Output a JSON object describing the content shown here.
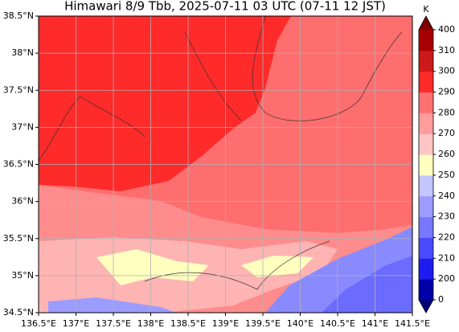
{
  "map": {
    "title": "Himawari 8/9 Tbb, 2025-07-11 03 UTC (07-11 12 JST)",
    "xlim": [
      136.5,
      141.5
    ],
    "ylim": [
      34.5,
      38.5
    ],
    "xticks": [
      {
        "value": 136.5,
        "label": "136.5°E"
      },
      {
        "value": 137,
        "label": "137°E"
      },
      {
        "value": 137.5,
        "label": "137.5°E"
      },
      {
        "value": 138,
        "label": "138°E"
      },
      {
        "value": 138.5,
        "label": "138.5°E"
      },
      {
        "value": 139,
        "label": "139°E"
      },
      {
        "value": 139.5,
        "label": "139.5°E"
      },
      {
        "value": 140,
        "label": "140°E"
      },
      {
        "value": 140.5,
        "label": "140.5°E"
      },
      {
        "value": 141,
        "label": "141°E"
      },
      {
        "value": 141.5,
        "label": "141.5°E"
      }
    ],
    "yticks": [
      {
        "value": 34.5,
        "label": "34.5°N"
      },
      {
        "value": 35,
        "label": "35°N"
      },
      {
        "value": 35.5,
        "label": "35.5°N"
      },
      {
        "value": 36,
        "label": "36°N"
      },
      {
        "value": 36.5,
        "label": "36.5°N"
      },
      {
        "value": 37,
        "label": "37°N"
      },
      {
        "value": 37.5,
        "label": "37.5°N"
      },
      {
        "value": 38,
        "label": "38°N"
      },
      {
        "value": 38.5,
        "label": "38.5°N"
      }
    ],
    "grid": true,
    "colorbar": {
      "unit": "K",
      "levels": [
        0,
        200,
        210,
        220,
        230,
        240,
        250,
        260,
        270,
        280,
        290,
        300,
        310,
        400
      ],
      "colors": [
        "#0000a8",
        "#1c1cf0",
        "#4a4aff",
        "#7878ff",
        "#9c9cff",
        "#c4c4ff",
        "#ffffc0",
        "#ffc4c4",
        "#ff9c9c",
        "#ff7070",
        "#ff2a2a",
        "#cc1a1a",
        "#a80000"
      ],
      "under_color": "#00007a",
      "over_color": "#7a0000"
    }
  }
}
